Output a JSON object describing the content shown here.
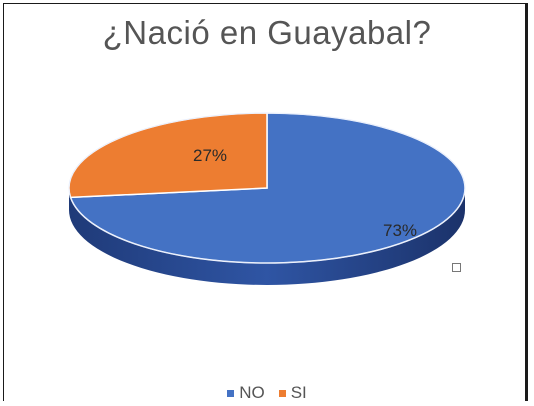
{
  "chart_data": {
    "type": "pie",
    "title": "¿Nació en Guayabal?",
    "categories": [
      "NO",
      "SI"
    ],
    "values": [
      73,
      27
    ],
    "labels": [
      "73%",
      "27%"
    ],
    "colors": [
      "#4472C4",
      "#ED7D31"
    ],
    "legend_position": "bottom",
    "style": "3d"
  }
}
